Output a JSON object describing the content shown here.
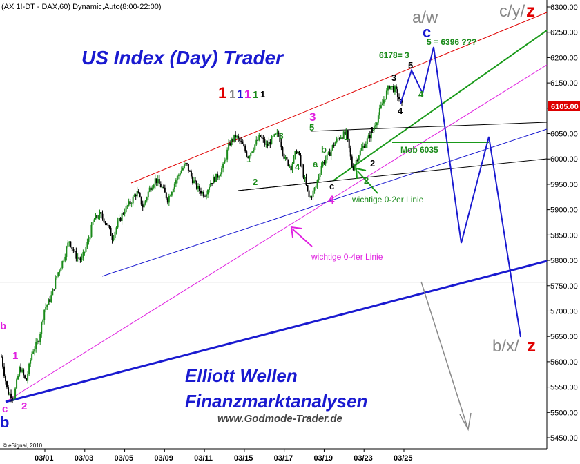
{
  "header": {
    "symbol_line": "(AX 1!-DT - DAX,60) Dynamic,Auto(8:00-22:00)"
  },
  "titles": {
    "main": "US Index (Day) Trader",
    "footer_line1": "Elliott Wellen",
    "footer_line2": "Finanzmarktanalysen",
    "footer_url": "www.Godmode-Trader.de",
    "copyright": "© eSignal, 2010"
  },
  "price_tag": {
    "value": "6105.00",
    "color": "#dd0000"
  },
  "colors": {
    "red": "#e00000",
    "blue": "#1a1ad0",
    "green": "#1a8a1a",
    "magenta": "#e020e0",
    "grey": "#888888",
    "black": "#000000",
    "candle_up": "#1a8a1a",
    "candle_down": "#000000"
  },
  "sequence_1": [
    {
      "text": "1",
      "color": "#e00000"
    },
    {
      "text": "1",
      "color": "#888888"
    },
    {
      "text": "1",
      "color": "#1a1ad0"
    },
    {
      "text": "1",
      "color": "#e020e0"
    },
    {
      "text": "1",
      "color": "#1a8a1a"
    },
    {
      "text": "1",
      "color": "#000000"
    }
  ],
  "labels": {
    "aw": "a/w",
    "c_big": "c",
    "cyz_prefix": "c/y/",
    "z": "z",
    "bxz_prefix": "b/x/",
    "target_3": "6178= 3",
    "target_5": "5 = 6396 ???",
    "mob": "Mob 6035",
    "wichtige_02": "wichtige 0-2er Linie",
    "wichtige_04": "wichtige 0-4er Linie",
    "w_black_3": "3",
    "w_black_5": "5",
    "w_black_4": "4",
    "w_black_1": "1",
    "w_black_2": "2",
    "w_green_4a": "4",
    "w_green_3": "3",
    "w_green_5": "5",
    "w_green_4": "4",
    "w_green_b": "b",
    "w_green_1": "1",
    "w_green_2": "2",
    "w_green_1b": "1",
    "w_green_a": "a",
    "w_green_2b": "2",
    "w_mag_3": "3",
    "w_mag_4": "4",
    "w_mag_1": "1",
    "w_mag_2": "2",
    "w_mag_c": "c",
    "w_mag_b": "b",
    "w_black_c": "c",
    "w_blue_b": "b"
  },
  "chart_data": {
    "type": "candlestick",
    "y_axis": {
      "min": 5425,
      "max": 6310,
      "side": "right",
      "ticks": [
        6300,
        6250,
        6200,
        6150,
        6100,
        6050,
        6000,
        5950,
        5900,
        5850,
        5800,
        5750,
        5700,
        5650,
        5600,
        5550,
        5500,
        5450
      ],
      "tick_labels": [
        "6300.00",
        "6250.00",
        "6200.00",
        "6150.00",
        "6100.00",
        "6050.00",
        "6000.00",
        "5950.00",
        "5900.00",
        "5850.00",
        "5800.00",
        "5750.00",
        "5700.00",
        "5650.00",
        "5600.00",
        "5550.00",
        "5500.00",
        "5450.00"
      ]
    },
    "x_axis": {
      "tick_labels": [
        "03/01",
        "03/03",
        "03/05",
        "03/09",
        "03/11",
        "03/15",
        "03/17",
        "03/19",
        "03/23",
        "03/25"
      ]
    },
    "price_path": [
      [
        0,
        5610
      ],
      [
        1,
        5540
      ],
      [
        2,
        5530
      ],
      [
        3,
        5590
      ],
      [
        4,
        5560
      ],
      [
        5,
        5620
      ],
      [
        6,
        5640
      ],
      [
        7,
        5705
      ],
      [
        8,
        5725
      ],
      [
        9,
        5770
      ],
      [
        10,
        5800
      ],
      [
        11,
        5840
      ],
      [
        12,
        5810
      ],
      [
        13,
        5800
      ],
      [
        14,
        5835
      ],
      [
        15,
        5880
      ],
      [
        16,
        5890
      ],
      [
        17,
        5875
      ],
      [
        18,
        5845
      ],
      [
        19,
        5875
      ],
      [
        20,
        5900
      ],
      [
        21,
        5915
      ],
      [
        22,
        5935
      ],
      [
        23,
        5905
      ],
      [
        24,
        5940
      ],
      [
        25,
        5960
      ],
      [
        26,
        5945
      ],
      [
        27,
        5920
      ],
      [
        28,
        5950
      ],
      [
        29,
        5975
      ],
      [
        30,
        5990
      ],
      [
        31,
        5960
      ],
      [
        32,
        5940
      ],
      [
        33,
        5930
      ],
      [
        34,
        5955
      ],
      [
        35,
        5965
      ],
      [
        36,
        5985
      ],
      [
        37,
        6030
      ],
      [
        38,
        6045
      ],
      [
        39,
        6030
      ],
      [
        40,
        6005
      ],
      [
        41,
        6025
      ],
      [
        42,
        6045
      ],
      [
        43,
        6025
      ],
      [
        44,
        6040
      ],
      [
        45,
        6050
      ],
      [
        46,
        6000
      ],
      [
        47,
        5985
      ],
      [
        48,
        6020
      ],
      [
        49,
        5970
      ],
      [
        50,
        5920
      ],
      [
        51,
        5945
      ],
      [
        52,
        5990
      ],
      [
        53,
        6005
      ],
      [
        54,
        6030
      ],
      [
        55,
        6045
      ],
      [
        56,
        6050
      ],
      [
        57,
        5980
      ],
      [
        58,
        6010
      ],
      [
        59,
        6030
      ],
      [
        60,
        6050
      ],
      [
        61,
        6080
      ],
      [
        62,
        6115
      ],
      [
        63,
        6145
      ],
      [
        64,
        6135
      ],
      [
        65,
        6105
      ]
    ],
    "hline_y": 5757,
    "annotations": "Elliott wave count; projected paths to 6396 then down towards 5650",
    "title": "US Index (Day) Trader"
  }
}
